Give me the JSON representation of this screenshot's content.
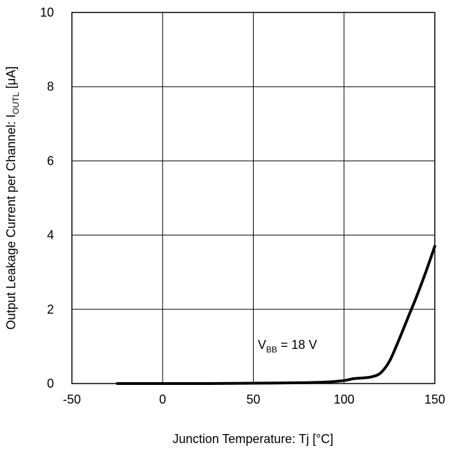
{
  "chart_data": {
    "type": "line",
    "xlabel": "Junction Temperature: Tj [°C]",
    "ylabel": {
      "main": "Output Leakage Current per Channel: I",
      "sub": "OUTL",
      "unit": " [μA]"
    },
    "xlim": [
      -50,
      150
    ],
    "ylim": [
      0,
      10
    ],
    "x_ticks": [
      "-50",
      "0",
      "50",
      "100",
      "150"
    ],
    "y_ticks": [
      "0",
      "2",
      "4",
      "6",
      "8",
      "10"
    ],
    "grid": true,
    "annotation": {
      "main": "V",
      "sub": "BB",
      "rest": " = 18 V"
    },
    "series": [
      {
        "color": "#000000",
        "x": [
          -25,
          0,
          25,
          50,
          75,
          90,
          100,
          105,
          110,
          115,
          120,
          125,
          130,
          135,
          140,
          145,
          150
        ],
        "y": [
          0.0,
          0.0,
          0.0,
          0.01,
          0.02,
          0.04,
          0.08,
          0.13,
          0.15,
          0.18,
          0.28,
          0.6,
          1.15,
          1.75,
          2.35,
          3.0,
          3.7
        ]
      }
    ]
  }
}
